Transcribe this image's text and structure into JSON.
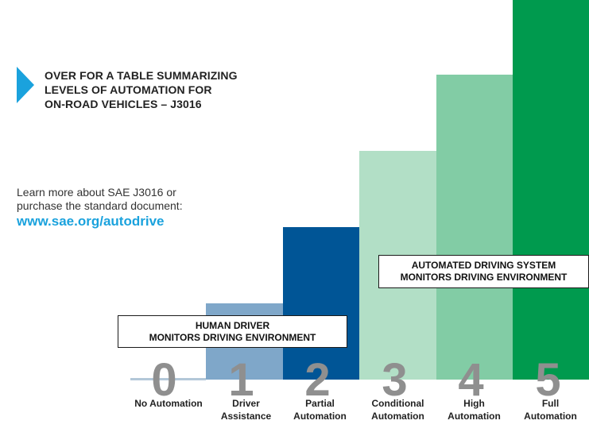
{
  "heading": {
    "lines": [
      "OVER FOR A TABLE SUMMARIZING",
      "LEVELS OF AUTOMATION FOR",
      "ON-ROAD VEHICLES – J3016"
    ]
  },
  "learn_more": {
    "lines": [
      "Learn more about SAE J3016 or",
      "purchase the standard document:"
    ],
    "link": "www.sae.org/autodrive"
  },
  "callouts": {
    "human": [
      "HUMAN DRIVER",
      "MONITORS DRIVING ENVIRONMENT"
    ],
    "automated": [
      "AUTOMATED DRIVING SYSTEM",
      "MONITORS DRIVING ENVIRONMENT"
    ]
  },
  "levels": [
    {
      "number": "0",
      "label": [
        "No Automation"
      ],
      "color": "#b3c7d8"
    },
    {
      "number": "1",
      "label": [
        "Driver",
        "Assistance"
      ],
      "color": "#7fa7c9"
    },
    {
      "number": "2",
      "label": [
        "Partial",
        "Automation"
      ],
      "color": "#005596"
    },
    {
      "number": "3",
      "label": [
        "Conditional",
        "Automation"
      ],
      "color": "#b2dfc6"
    },
    {
      "number": "4",
      "label": [
        "High",
        "Automation"
      ],
      "color": "#82cca5"
    },
    {
      "number": "5",
      "label": [
        "Full",
        "Automation"
      ],
      "color": "#009a4e"
    }
  ],
  "colors": {
    "link": "#1aa2dd",
    "arrow": "#1aa2dd",
    "level_numbers": "#8f8f8f"
  }
}
